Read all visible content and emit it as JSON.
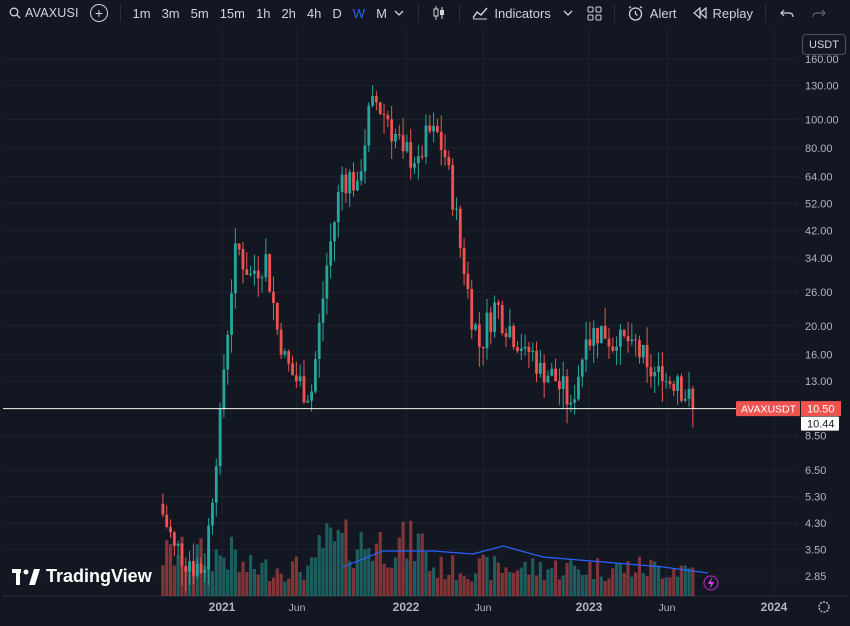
{
  "toolbar": {
    "symbol": "AVAXUSI",
    "intervals": [
      "1m",
      "3m",
      "5m",
      "15m",
      "1h",
      "2h",
      "4h",
      "D",
      "W",
      "M"
    ],
    "active_interval": "W",
    "indicators_label": "Indicators",
    "alert_label": "Alert",
    "replay_label": "Replay",
    "icons": {
      "search": "search-icon",
      "add": "plus-circle-icon",
      "chevron": "chevron-down-icon",
      "candles": "candlestick-icon",
      "indicators": "indicators-icon",
      "layouts": "layout-grid-icon",
      "alert": "alarm-clock-icon",
      "replay": "replay-icon",
      "undo": "undo-icon",
      "redo": "redo-icon"
    }
  },
  "currency_label": "USDT",
  "watermark": "TradingView",
  "colors": {
    "background": "#131722",
    "up": "#26a69a",
    "down": "#ef5350",
    "grid": "#1e222d",
    "ma": "#2962ff",
    "price_line": "#ffffff"
  },
  "chart_data": {
    "type": "candlestick",
    "symbol": "AVAXUSDT",
    "interval": "W",
    "scale": "log",
    "y_ticks": [
      "160.00",
      "130.00",
      "100.00",
      "80.00",
      "64.00",
      "52.00",
      "42.00",
      "34.00",
      "26.00",
      "20.00",
      "16.00",
      "13.00",
      "10.50",
      "8.50",
      "6.50",
      "5.30",
      "4.30",
      "3.50",
      "2.85"
    ],
    "y_tick_values": [
      160,
      130,
      100,
      80,
      64,
      52,
      42,
      34,
      26,
      20,
      16,
      13,
      10.5,
      8.5,
      6.5,
      5.3,
      4.3,
      3.5,
      2.85
    ],
    "x_labels": [
      "2021",
      "Jun",
      "2022",
      "Jun",
      "2023",
      "Jun",
      "2024"
    ],
    "x_label_dates": [
      "2021-01",
      "2021-06",
      "2022-01",
      "2022-06",
      "2023-01",
      "2023-06",
      "2024-01"
    ],
    "last_price": "10.50",
    "price_label": "AVAXUSDT",
    "crosshair_value": "10.44",
    "close_series": [
      {
        "date": "2020-09",
        "close": 5.0
      },
      {
        "date": "2020-10",
        "close": 3.6
      },
      {
        "date": "2020-11",
        "close": 3.2
      },
      {
        "date": "2020-12",
        "close": 3.0
      },
      {
        "date": "2021-01",
        "close": 10.5
      },
      {
        "date": "2021-02",
        "close": 38.0
      },
      {
        "date": "2021-03",
        "close": 30.0
      },
      {
        "date": "2021-04",
        "close": 35.0
      },
      {
        "date": "2021-05",
        "close": 16.0
      },
      {
        "date": "2021-06",
        "close": 13.0
      },
      {
        "date": "2021-07",
        "close": 12.0
      },
      {
        "date": "2021-08",
        "close": 32.0
      },
      {
        "date": "2021-09",
        "close": 65.0
      },
      {
        "date": "2021-10",
        "close": 62.0
      },
      {
        "date": "2021-11",
        "close": 120.0
      },
      {
        "date": "2021-12",
        "close": 100.0
      },
      {
        "date": "2022-01",
        "close": 78.0
      },
      {
        "date": "2022-02",
        "close": 75.0
      },
      {
        "date": "2022-03",
        "close": 95.0
      },
      {
        "date": "2022-04",
        "close": 70.0
      },
      {
        "date": "2022-05",
        "close": 30.0
      },
      {
        "date": "2022-06",
        "close": 17.0
      },
      {
        "date": "2022-07",
        "close": 24.0
      },
      {
        "date": "2022-08",
        "close": 20.0
      },
      {
        "date": "2022-09",
        "close": 17.0
      },
      {
        "date": "2022-10",
        "close": 15.0
      },
      {
        "date": "2022-11",
        "close": 13.0
      },
      {
        "date": "2022-12",
        "close": 11.0
      },
      {
        "date": "2023-01",
        "close": 18.0
      },
      {
        "date": "2023-02",
        "close": 20.0
      },
      {
        "date": "2023-03",
        "close": 17.0
      },
      {
        "date": "2023-04",
        "close": 18.0
      },
      {
        "date": "2023-05",
        "close": 14.5
      },
      {
        "date": "2023-06",
        "close": 13.0
      },
      {
        "date": "2023-07",
        "close": 13.5
      },
      {
        "date": "2023-08",
        "close": 10.5
      }
    ]
  }
}
